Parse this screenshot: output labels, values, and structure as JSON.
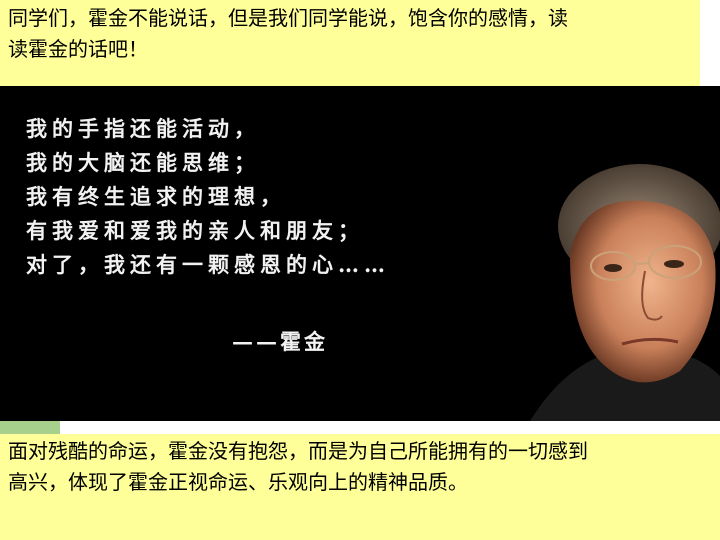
{
  "top_caption": {
    "line1": "同学们，霍金不能说话，但是我们同学能说，饱含你的感情，读",
    "line2": "读霍金的话吧！"
  },
  "quote": {
    "lines": [
      "我的手指还能活动，",
      "我的大脑还能思维；",
      "我有终生追求的理想，",
      "有我爱和爱我的亲人和朋友；",
      "对了，我还有一颗感恩的心……"
    ],
    "signature": "——霍金"
  },
  "bottom_caption": {
    "line1": "面对残酷的命运，霍金没有抱怨，而是为自己所能拥有的一切感到",
    "line2": "高兴，体现了霍金正视命运、乐观向上的精神品质。"
  },
  "colors": {
    "banner": "#ffff99",
    "photo_bg": "#000000",
    "accent_tab": "#a8d08d"
  }
}
